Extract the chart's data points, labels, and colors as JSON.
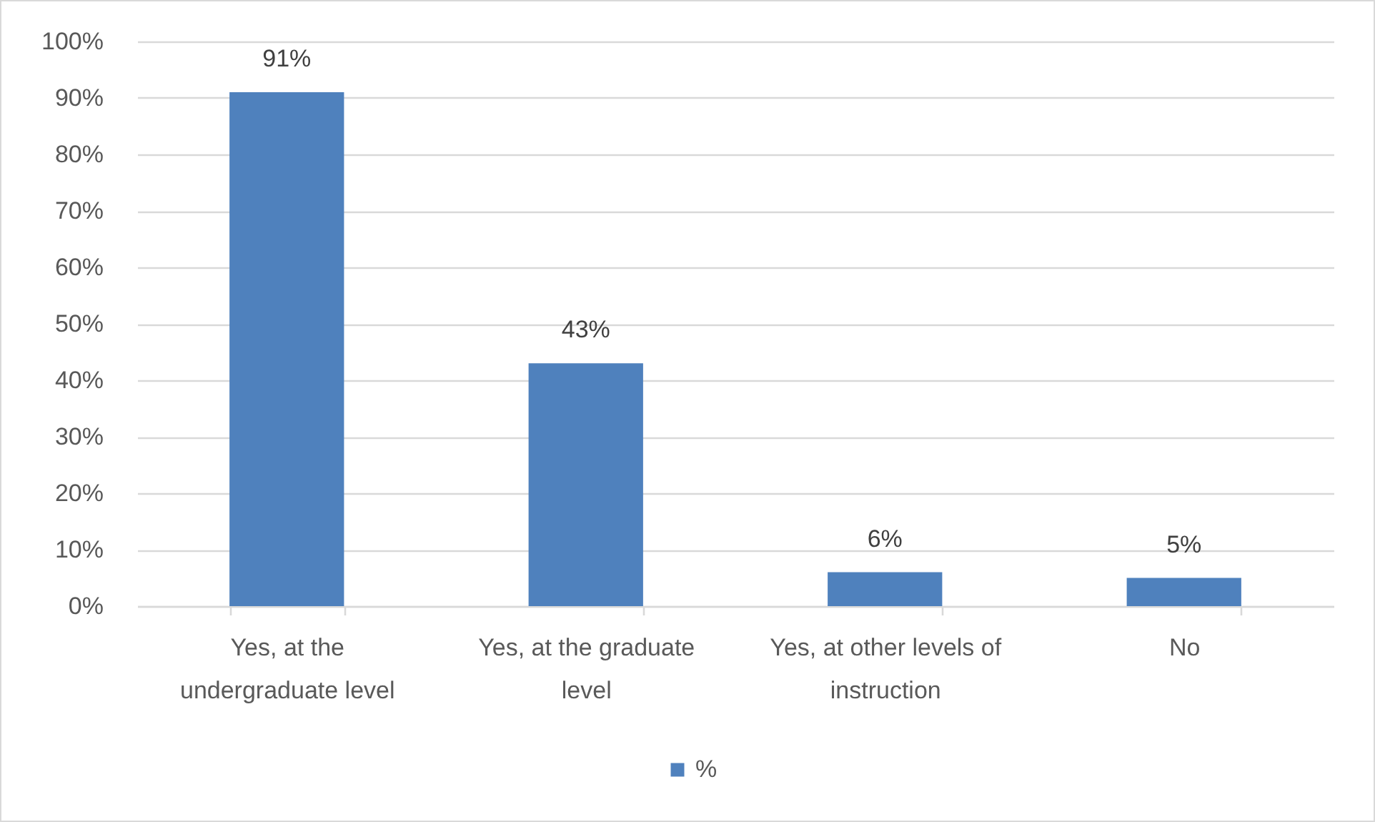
{
  "chart_data": {
    "type": "bar",
    "categories": [
      "Yes, at the undergraduate level",
      "Yes, at the graduate level",
      "Yes, at other levels of instruction",
      "No"
    ],
    "series": [
      {
        "name": "%",
        "color": "#4f81bd",
        "values": [
          91,
          43,
          6,
          5
        ],
        "value_labels": [
          "91%",
          "43%",
          "6%",
          "5%"
        ]
      }
    ],
    "ylim": [
      0,
      100
    ],
    "yticks": [
      {
        "value": 0,
        "label": "0%"
      },
      {
        "value": 10,
        "label": "10%"
      },
      {
        "value": 20,
        "label": "20%"
      },
      {
        "value": 30,
        "label": "30%"
      },
      {
        "value": 40,
        "label": "40%"
      },
      {
        "value": 50,
        "label": "50%"
      },
      {
        "value": 60,
        "label": "60%"
      },
      {
        "value": 70,
        "label": "70%"
      },
      {
        "value": 80,
        "label": "80%"
      },
      {
        "value": 90,
        "label": "90%"
      },
      {
        "value": 100,
        "label": "100%"
      }
    ],
    "grid": "y",
    "legend": "bottom"
  }
}
